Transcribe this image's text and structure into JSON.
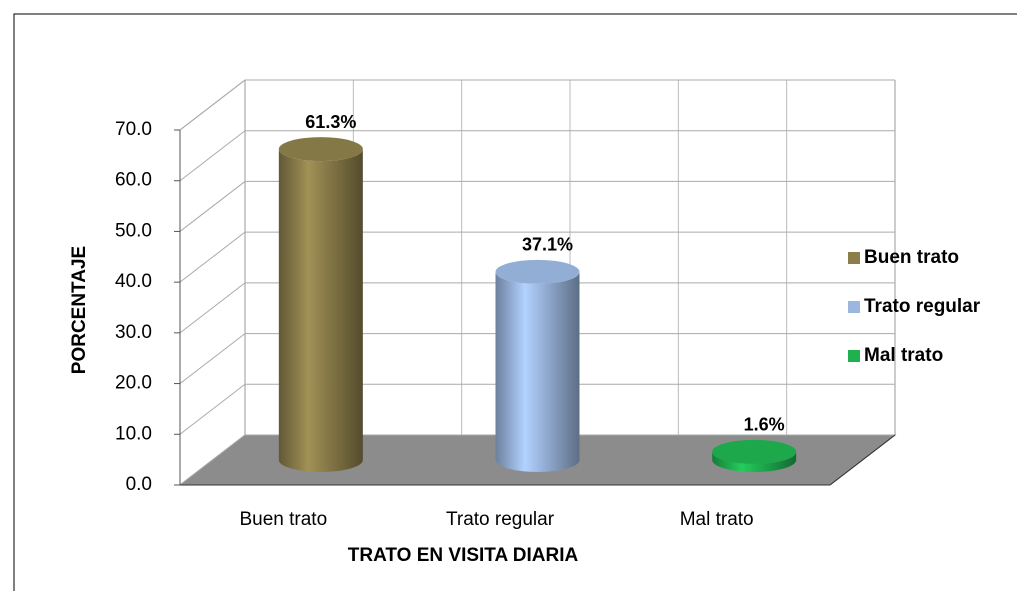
{
  "chart_data": {
    "type": "bar3d",
    "categories": [
      "Buen trato",
      "Trato regular",
      "Mal trato"
    ],
    "values": [
      61.3,
      37.1,
      1.6
    ],
    "value_labels": [
      "61.3%",
      "37.1%",
      "1.6%"
    ],
    "colors": [
      "#8c7e4b",
      "#9bb7e0",
      "#1fb150"
    ],
    "x_label": "TRATO EN VISITA DIARIA",
    "y_label": "PORCENTAJE",
    "ylim": [
      0,
      70
    ],
    "yticks": [
      {
        "value": 0,
        "label": "0.0"
      },
      {
        "value": 10,
        "label": "10.0"
      },
      {
        "value": 20,
        "label": "20.0"
      },
      {
        "value": 30,
        "label": "30.0"
      },
      {
        "value": 40,
        "label": "40.0"
      },
      {
        "value": 50,
        "label": "50.0"
      },
      {
        "value": 60,
        "label": "60.0"
      },
      {
        "value": 70,
        "label": "70.0"
      }
    ],
    "grid": true,
    "legend": "right"
  }
}
